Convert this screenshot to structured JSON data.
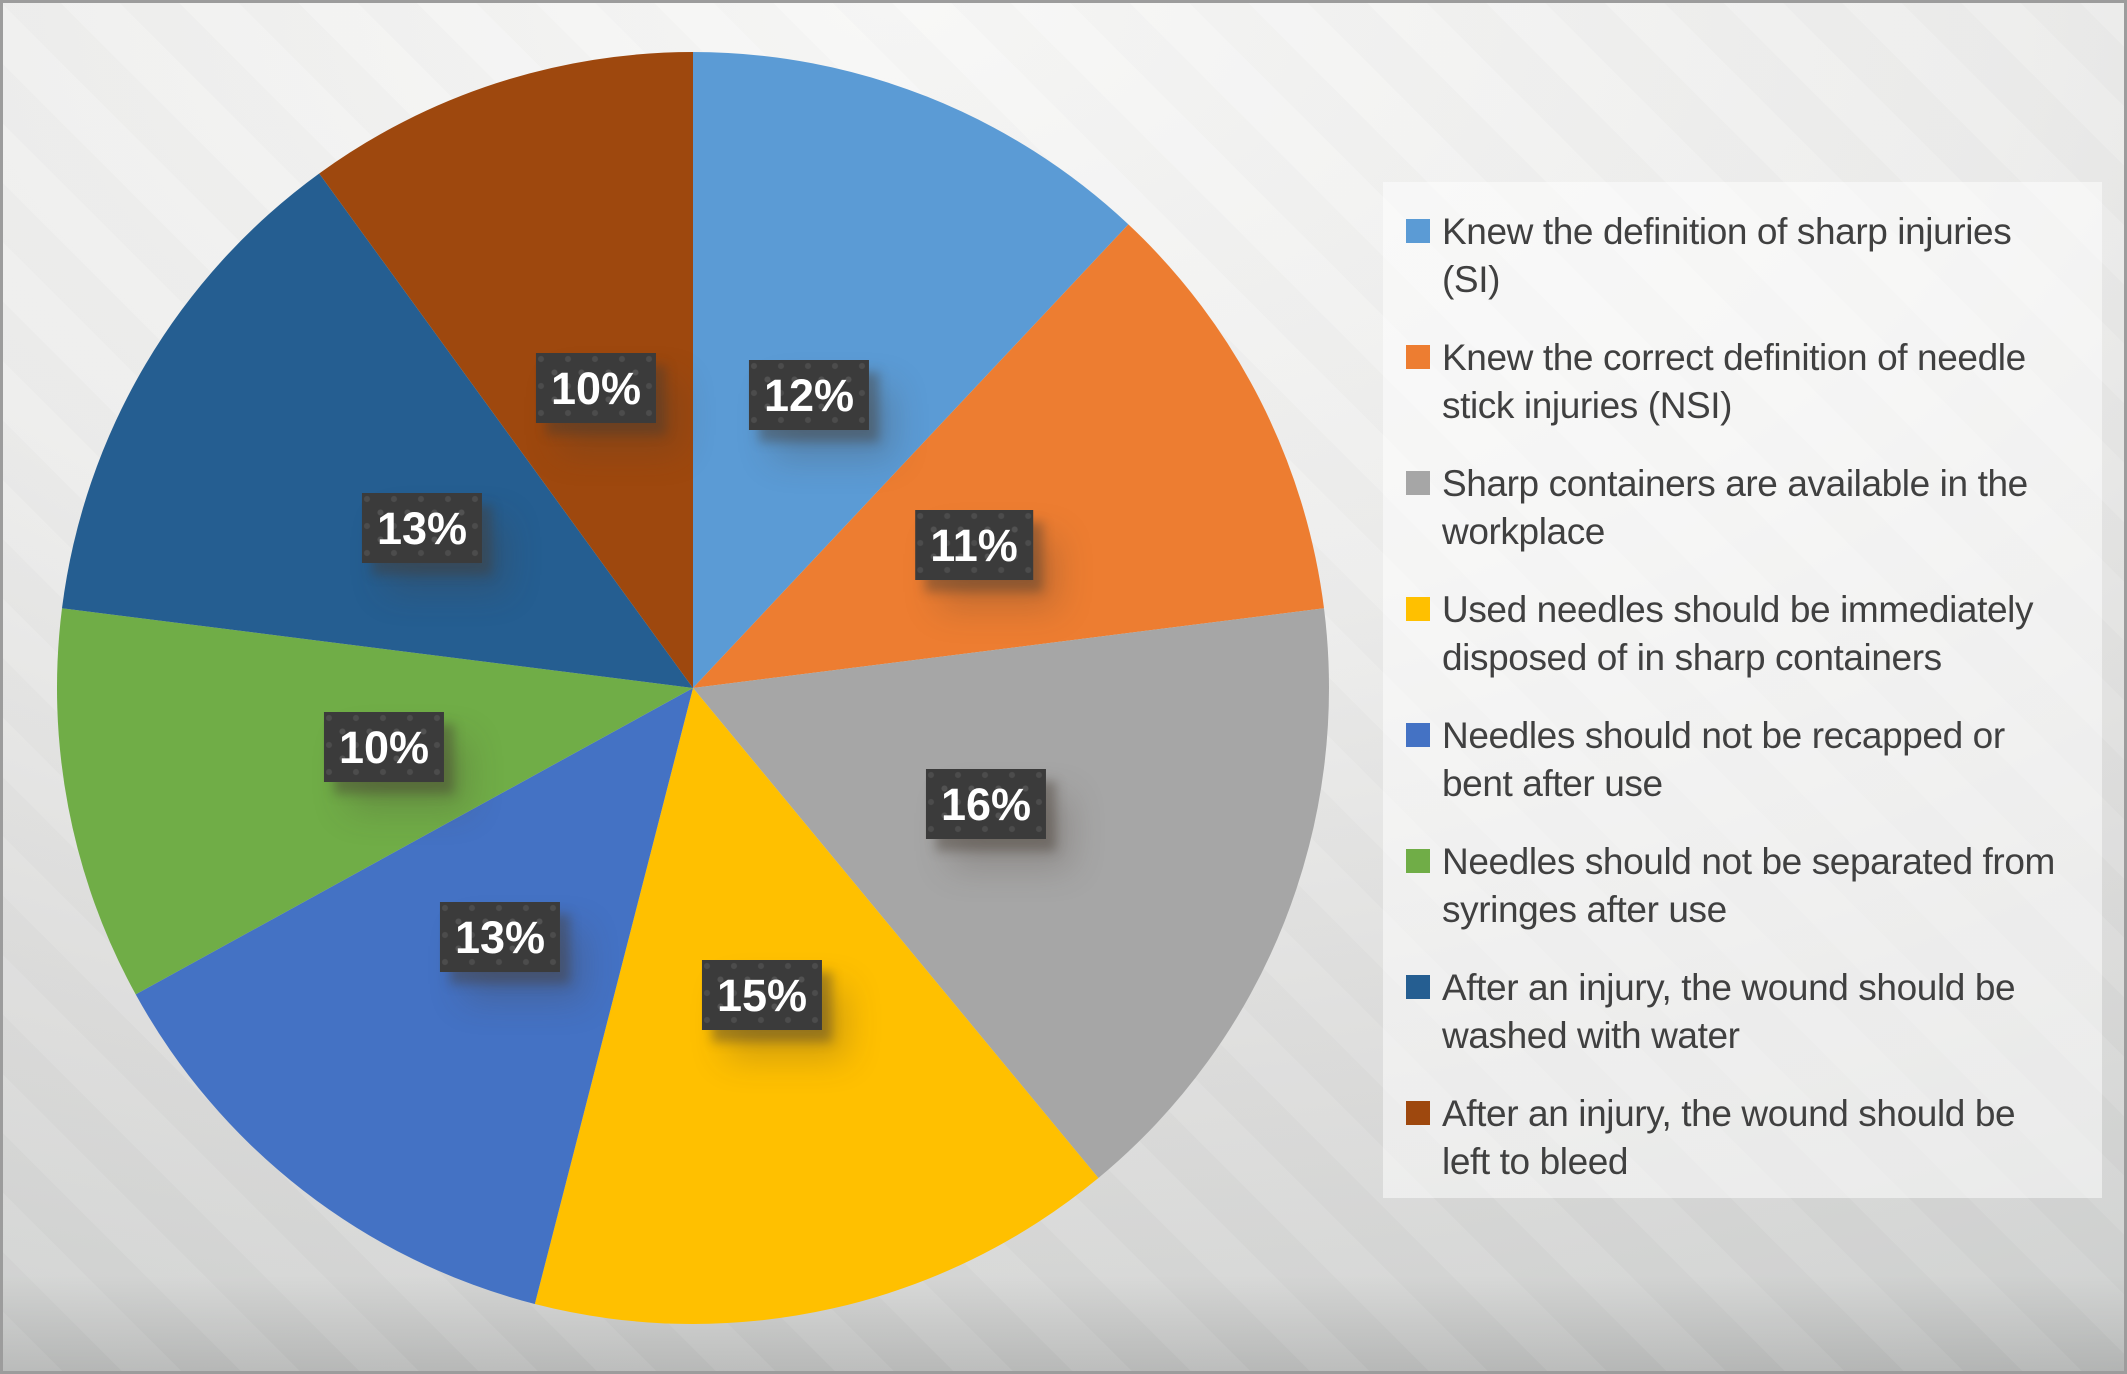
{
  "chart_data": {
    "type": "pie",
    "title": "",
    "legend_position": "right",
    "value_format": "percent",
    "total": 100,
    "start_angle_deg": 0,
    "direction": "clockwise",
    "slices": [
      {
        "label": "Knew the definition of sharp injuries (SI)",
        "legend_lines": [
          "Knew the definition of sharp injuries",
          "(SI)"
        ],
        "value": 12,
        "data_label": "12%",
        "color": "#5B9BD5"
      },
      {
        "label": "Knew the correct definition of needle stick injuries (NSI)",
        "legend_lines": [
          "Knew the correct definition of needle",
          "stick injuries (NSI)"
        ],
        "value": 11,
        "data_label": "11%",
        "color": "#ED7D31"
      },
      {
        "label": "Sharp containers are available in the workplace",
        "legend_lines": [
          "Sharp containers are available in the",
          "workplace"
        ],
        "value": 16,
        "data_label": "16%",
        "color": "#A6A6A6"
      },
      {
        "label": "Used needles should be immediately disposed of in sharp containers",
        "legend_lines": [
          "Used needles should be immediately",
          "disposed of in sharp containers"
        ],
        "value": 15,
        "data_label": "15%",
        "color": "#FFC000"
      },
      {
        "label": "Needles should not be recapped or bent after use",
        "legend_lines": [
          "Needles should not be recapped or",
          "bent after use"
        ],
        "value": 13,
        "data_label": "13%",
        "color": "#4472C4"
      },
      {
        "label": "Needles should not be separated from syringes after use",
        "legend_lines": [
          "Needles should not be separated from",
          "syringes after use"
        ],
        "value": 10,
        "data_label": "10%",
        "color": "#70AD47"
      },
      {
        "label": "After an injury, the wound should be washed with water",
        "legend_lines": [
          "After an injury, the wound should be",
          "washed with water"
        ],
        "value": 13,
        "data_label": "13%",
        "color": "#255E91"
      },
      {
        "label": "After an injury, the wound should be left to bleed",
        "legend_lines": [
          "After an injury, the wound should be",
          "left to bleed"
        ],
        "value": 10,
        "data_label": "10%",
        "color": "#9E480E"
      }
    ],
    "data_label_style": {
      "background": "#3B3B3B",
      "dot": "#515151",
      "text": "#FFFFFF"
    }
  }
}
